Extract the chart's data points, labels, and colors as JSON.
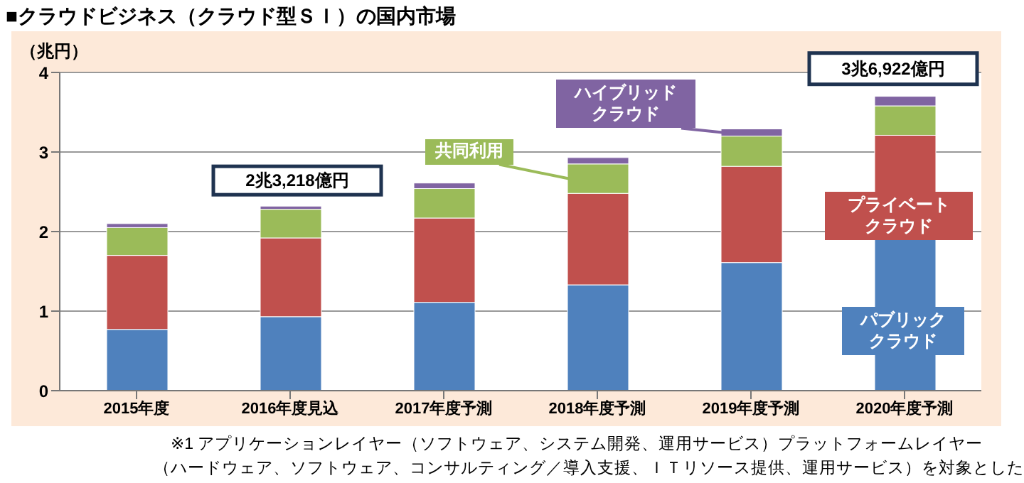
{
  "chart_data": {
    "type": "bar",
    "title": "■クラウドビジネス（クラウド型ＳＩ）の国内市場",
    "ylabel": "（兆円）",
    "stacked": true,
    "grid": "y",
    "legend": false,
    "categories": [
      "2015年度",
      "2016年度見込",
      "2017年度予測",
      "2018年度予測",
      "2019年度予測",
      "2020年度予測"
    ],
    "ylim": [
      0,
      4
    ],
    "yticks": [
      0,
      1,
      2,
      3,
      4
    ],
    "series": [
      {
        "name": "パブリッククラウド",
        "color": "#4f81bd",
        "values": [
          0.77,
          0.93,
          1.11,
          1.33,
          1.61,
          1.9
        ]
      },
      {
        "name": "プライベートクラウド",
        "color": "#c0504d",
        "values": [
          0.93,
          0.99,
          1.06,
          1.15,
          1.21,
          1.31
        ]
      },
      {
        "name": "共同利用",
        "color": "#9bbb59",
        "values": [
          0.35,
          0.36,
          0.37,
          0.37,
          0.38,
          0.37
        ]
      },
      {
        "name": "ハイブリッドクラウド",
        "color": "#8064a2",
        "values": [
          0.05,
          0.04,
          0.07,
          0.08,
          0.09,
          0.12
        ]
      }
    ],
    "annotations": [
      {
        "text": "2兆3,218億円",
        "x": "2016年度見込",
        "y": 2.32
      },
      {
        "text": "3兆6,922億円",
        "x": "2020年度予測",
        "y": 3.69
      },
      "※1 アプリケーションレイヤー（ソフトウェア、システム開発、運用サービス）プラットフォームレイヤー",
      "（ハードウェア、ソフトウェア、コンサルティング／導入支援、ＩＴリソース提供、運用サービス）を対象とした"
    ]
  }
}
